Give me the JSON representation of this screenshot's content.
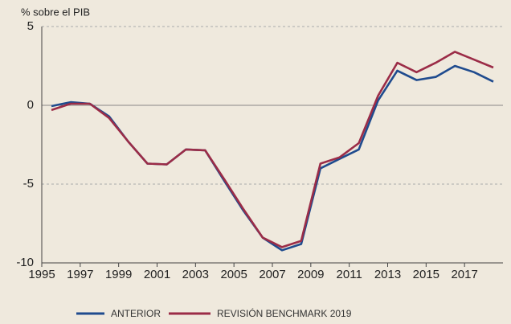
{
  "chart_data": {
    "type": "line",
    "y_label": "% sobre el PIB",
    "categories": [
      "1995",
      null,
      "1997",
      null,
      "1999",
      null,
      "2001",
      null,
      "2003",
      null,
      "2005",
      null,
      "2007",
      null,
      "2009",
      null,
      "2011",
      null,
      "2013",
      null,
      "2015",
      null,
      "2017",
      null
    ],
    "series": [
      {
        "name": "ANTERIOR",
        "color": "#1f4b8e",
        "values": [
          -0.05,
          0.2,
          0.1,
          -0.7,
          -2.3,
          -3.7,
          -3.75,
          -2.8,
          -2.85,
          -4.8,
          -6.7,
          -8.4,
          -9.2,
          -8.8,
          -4.0,
          -3.4,
          -2.8,
          0.3,
          2.2,
          1.6,
          1.8,
          2.5,
          2.1,
          1.5
        ]
      },
      {
        "name": "REVISIÓN BENCHMARK 2019",
        "color": "#9b2c47",
        "values": [
          -0.3,
          0.1,
          0.1,
          -0.8,
          -2.3,
          -3.7,
          -3.75,
          -2.8,
          -2.85,
          -4.7,
          -6.6,
          -8.4,
          -9.0,
          -8.6,
          -3.7,
          -3.3,
          -2.4,
          0.6,
          2.7,
          2.1,
          2.7,
          3.4,
          2.9,
          2.4
        ]
      }
    ],
    "ylim": [
      -10,
      5
    ],
    "yticks": [
      -10,
      -5,
      0,
      5
    ],
    "grid": true
  }
}
